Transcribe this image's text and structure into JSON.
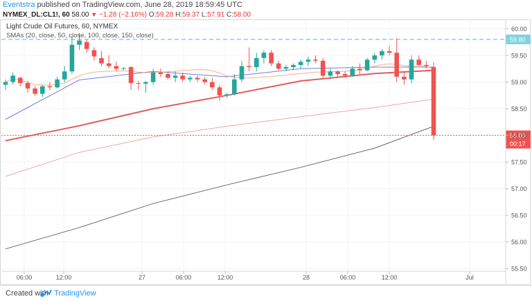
{
  "header": {
    "author": "Eventstra",
    "published": "published on TradingView.com, June 28, 2019 18:59:45 UTC"
  },
  "quote": {
    "symbol": "NYMEX_DL:CL1!, 60",
    "last": "58.00",
    "change": "−1.28 (−2.16%)",
    "o_label": "O:",
    "o_value": "59.28",
    "h_label": "H:",
    "h_value": "59.37",
    "l_label": "L:",
    "l_value": "57.91",
    "c_label": "C:",
    "c_value": "58.00"
  },
  "legend": {
    "title": "Light Crude Oil Futures, 60, NYMEX",
    "indicator": "SMAs (20, close, 50, close, 100, close, 150, close)"
  },
  "footer": {
    "created_with": "Created with",
    "brand": "TradingView"
  },
  "colors": {
    "up": "#26a69a",
    "down": "#ef5350",
    "sma20": "#f5a26b",
    "sma50": "#6b7be8",
    "sma100": "#e35b5b",
    "sma150": "#f1a6a6",
    "sma_long": "#666666",
    "resistance": "#7fd3de",
    "last_price_line": "#ef5350"
  },
  "chart_data": {
    "type": "candlestick",
    "title": "Light Crude Oil Futures, 60, NYMEX",
    "timeframe": "60",
    "ylim": [
      55.45,
      60.15
    ],
    "y_ticks": [
      55.5,
      56.0,
      56.5,
      57.0,
      57.5,
      58.0,
      58.5,
      59.0,
      59.5,
      60.0
    ],
    "y_tick_labels": [
      "55.50",
      "56.00",
      "56.50",
      "57.00",
      "57.50",
      "58.00",
      "58.50",
      "59.00",
      "59.50",
      "60.00"
    ],
    "x_ticks": [
      "06:00",
      "12:00",
      "27",
      "06:00",
      "12:00",
      "28",
      "06:00",
      "12:00",
      "Jul"
    ],
    "resistance_level": 59.8,
    "resistance_label": "59.80",
    "last_price": 58.0,
    "last_price_label": "58.00",
    "countdown_label": "00:17",
    "candles": [
      {
        "o": 58.95,
        "h": 59.05,
        "l": 58.85,
        "c": 59.0
      },
      {
        "o": 59.0,
        "h": 59.18,
        "l": 58.95,
        "c": 59.12
      },
      {
        "o": 59.08,
        "h": 59.1,
        "l": 58.92,
        "c": 58.98
      },
      {
        "o": 58.98,
        "h": 59.02,
        "l": 58.8,
        "c": 58.88
      },
      {
        "o": 58.88,
        "h": 58.92,
        "l": 58.74,
        "c": 58.78
      },
      {
        "o": 58.78,
        "h": 58.95,
        "l": 58.72,
        "c": 58.92
      },
      {
        "o": 58.92,
        "h": 59.0,
        "l": 58.85,
        "c": 58.9
      },
      {
        "o": 58.9,
        "h": 59.1,
        "l": 58.88,
        "c": 59.05
      },
      {
        "o": 59.05,
        "h": 59.3,
        "l": 59.0,
        "c": 59.2
      },
      {
        "o": 59.2,
        "h": 59.85,
        "l": 59.15,
        "c": 59.7
      },
      {
        "o": 59.7,
        "h": 59.92,
        "l": 59.6,
        "c": 59.78
      },
      {
        "o": 59.75,
        "h": 59.8,
        "l": 59.55,
        "c": 59.62
      },
      {
        "o": 59.6,
        "h": 59.65,
        "l": 59.4,
        "c": 59.48
      },
      {
        "o": 59.45,
        "h": 59.58,
        "l": 59.3,
        "c": 59.35
      },
      {
        "o": 59.35,
        "h": 59.5,
        "l": 59.25,
        "c": 59.3
      },
      {
        "o": 59.3,
        "h": 59.38,
        "l": 59.2,
        "c": 59.25
      },
      {
        "o": 59.25,
        "h": 59.28,
        "l": 59.22,
        "c": 59.26
      },
      {
        "o": 59.28,
        "h": 59.3,
        "l": 58.85,
        "c": 58.98
      },
      {
        "o": 58.98,
        "h": 59.02,
        "l": 58.85,
        "c": 58.97
      },
      {
        "o": 58.97,
        "h": 59.02,
        "l": 58.8,
        "c": 59.0
      },
      {
        "o": 59.0,
        "h": 59.25,
        "l": 58.95,
        "c": 59.18
      },
      {
        "o": 59.18,
        "h": 59.25,
        "l": 59.1,
        "c": 59.15
      },
      {
        "o": 59.15,
        "h": 59.2,
        "l": 59.05,
        "c": 59.08
      },
      {
        "o": 59.08,
        "h": 59.2,
        "l": 59.0,
        "c": 59.12
      },
      {
        "o": 59.12,
        "h": 59.18,
        "l": 59.0,
        "c": 59.05
      },
      {
        "o": 59.05,
        "h": 59.12,
        "l": 59.0,
        "c": 59.08
      },
      {
        "o": 59.08,
        "h": 59.12,
        "l": 59.0,
        "c": 59.05
      },
      {
        "o": 59.05,
        "h": 59.1,
        "l": 58.95,
        "c": 59.0
      },
      {
        "o": 59.0,
        "h": 59.08,
        "l": 58.85,
        "c": 58.9
      },
      {
        "o": 58.9,
        "h": 58.95,
        "l": 58.65,
        "c": 58.75
      },
      {
        "o": 58.75,
        "h": 58.8,
        "l": 58.7,
        "c": 58.77
      },
      {
        "o": 58.77,
        "h": 59.15,
        "l": 58.75,
        "c": 59.05
      },
      {
        "o": 59.05,
        "h": 59.4,
        "l": 59.0,
        "c": 59.3
      },
      {
        "o": 59.3,
        "h": 59.65,
        "l": 59.2,
        "c": 59.28
      },
      {
        "o": 59.28,
        "h": 59.55,
        "l": 59.2,
        "c": 59.45
      },
      {
        "o": 59.45,
        "h": 59.6,
        "l": 59.35,
        "c": 59.55
      },
      {
        "o": 59.55,
        "h": 59.6,
        "l": 59.3,
        "c": 59.35
      },
      {
        "o": 59.35,
        "h": 59.4,
        "l": 59.22,
        "c": 59.25
      },
      {
        "o": 59.25,
        "h": 59.32,
        "l": 59.2,
        "c": 59.28
      },
      {
        "o": 59.28,
        "h": 59.35,
        "l": 59.22,
        "c": 59.32
      },
      {
        "o": 59.32,
        "h": 59.42,
        "l": 59.25,
        "c": 59.38
      },
      {
        "o": 59.38,
        "h": 59.48,
        "l": 59.3,
        "c": 59.42
      },
      {
        "o": 59.42,
        "h": 59.5,
        "l": 59.35,
        "c": 59.4
      },
      {
        "o": 59.4,
        "h": 59.45,
        "l": 59.05,
        "c": 59.12
      },
      {
        "o": 59.12,
        "h": 59.25,
        "l": 59.05,
        "c": 59.2
      },
      {
        "o": 59.2,
        "h": 59.22,
        "l": 59.1,
        "c": 59.15
      },
      {
        "o": 59.15,
        "h": 59.2,
        "l": 59.08,
        "c": 59.12
      },
      {
        "o": 59.12,
        "h": 59.3,
        "l": 59.1,
        "c": 59.25
      },
      {
        "o": 59.25,
        "h": 59.35,
        "l": 59.15,
        "c": 59.22
      },
      {
        "o": 59.22,
        "h": 59.45,
        "l": 59.2,
        "c": 59.42
      },
      {
        "o": 59.42,
        "h": 59.55,
        "l": 59.35,
        "c": 59.5
      },
      {
        "o": 59.5,
        "h": 59.62,
        "l": 59.42,
        "c": 59.58
      },
      {
        "o": 59.58,
        "h": 59.68,
        "l": 59.5,
        "c": 59.55
      },
      {
        "o": 59.55,
        "h": 59.82,
        "l": 59.0,
        "c": 59.1
      },
      {
        "o": 59.1,
        "h": 59.2,
        "l": 58.95,
        "c": 59.05
      },
      {
        "o": 59.05,
        "h": 59.5,
        "l": 58.98,
        "c": 59.42
      },
      {
        "o": 59.42,
        "h": 59.5,
        "l": 59.3,
        "c": 59.32
      },
      {
        "o": 59.32,
        "h": 59.4,
        "l": 59.25,
        "c": 59.3
      },
      {
        "o": 59.28,
        "h": 59.37,
        "l": 57.91,
        "c": 58.0
      }
    ],
    "sma_series": [
      {
        "period": 20,
        "values": []
      },
      {
        "period": 50,
        "values": []
      },
      {
        "period": 100,
        "values": []
      },
      {
        "period": 150,
        "values": []
      }
    ]
  }
}
